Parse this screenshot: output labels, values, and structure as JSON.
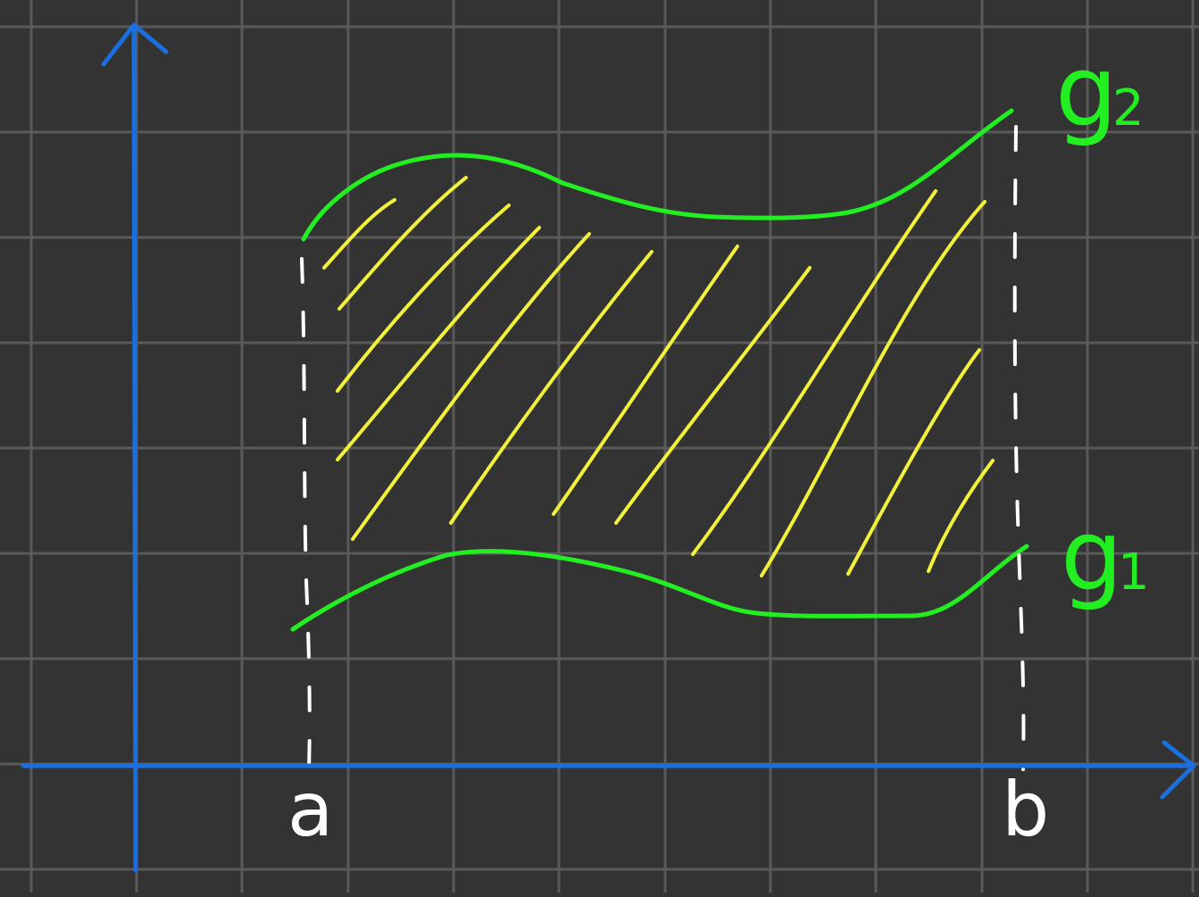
{
  "labels": {
    "a": "a",
    "b": "b",
    "g1": "g",
    "g1_sub": "1",
    "g2": "g",
    "g2_sub": "2"
  },
  "colors": {
    "background": "#333333",
    "grid": "#5a5a5a",
    "axis": "#1a6fe0",
    "curve": "#22ee22",
    "hatch": "#f2f23a",
    "bound_line": "#ffffff",
    "label_ab": "#ffffff"
  }
}
